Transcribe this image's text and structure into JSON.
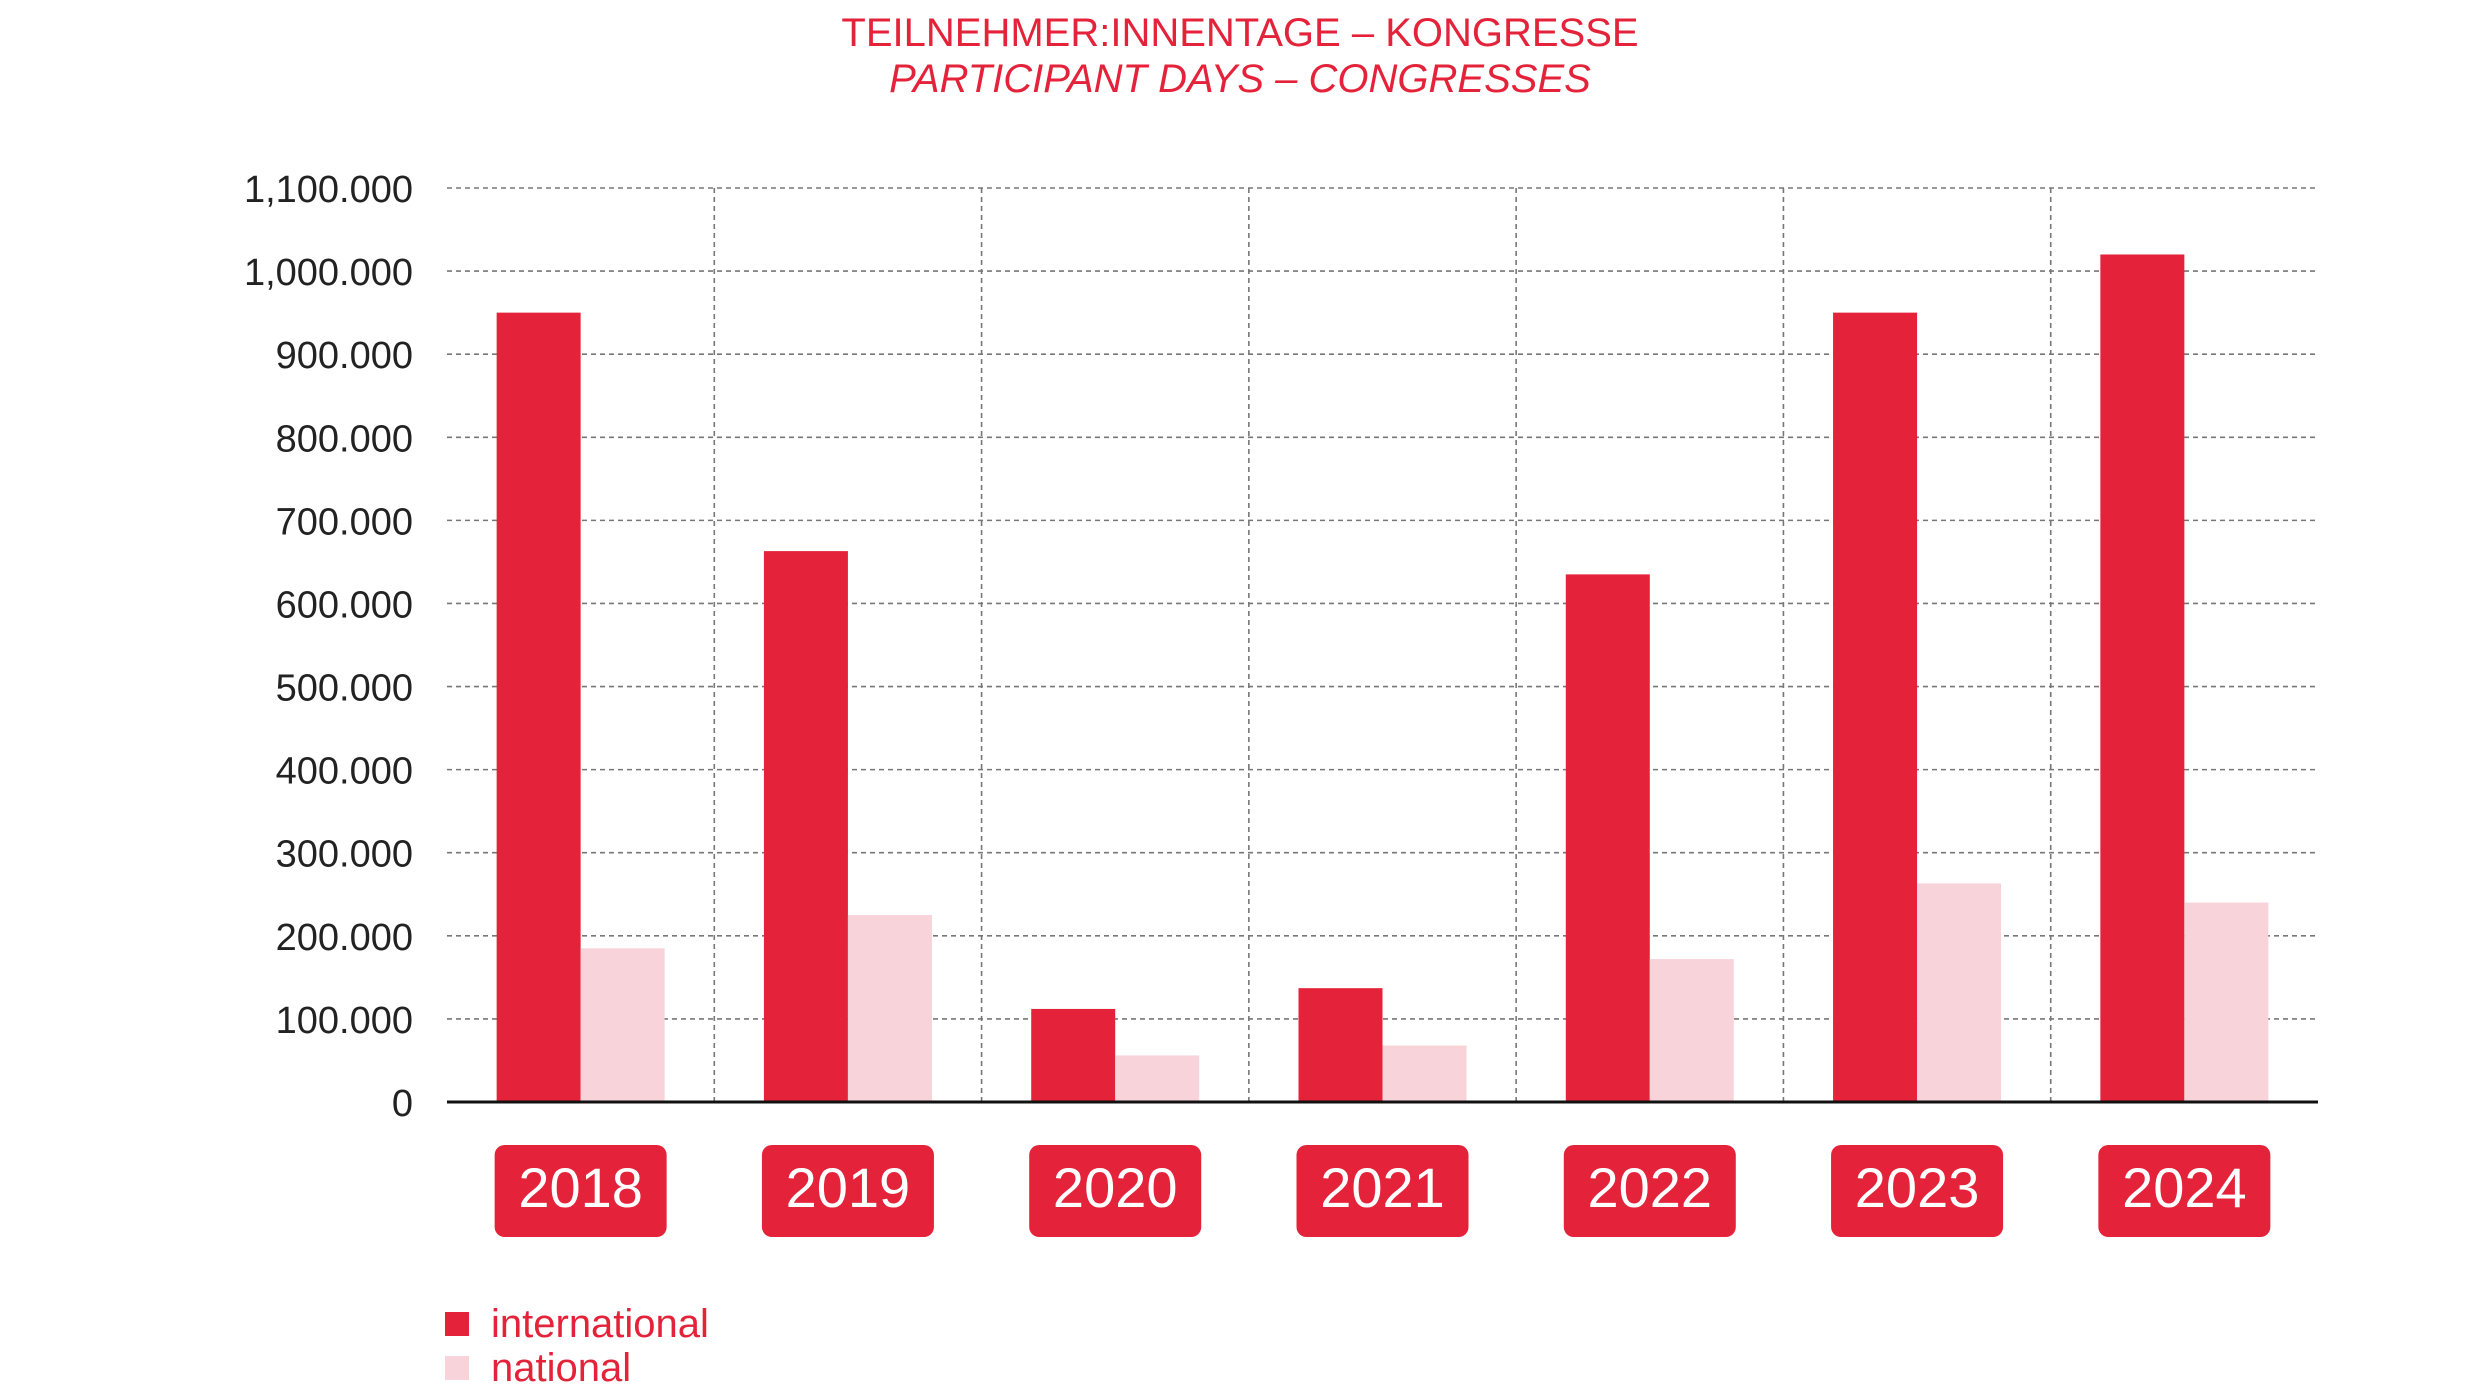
{
  "chart_data": {
    "type": "bar",
    "title": "TEILNEHMER:INNENTAGE – KONGRESSE",
    "subtitle": "PARTICIPANT DAYS – CONGRESSES",
    "xlabel": "",
    "ylabel": "",
    "categories": [
      "2018",
      "2019",
      "2020",
      "2021",
      "2022",
      "2023",
      "2024"
    ],
    "series": [
      {
        "name": "international",
        "color": "#e4233a",
        "values": [
          950000,
          663000,
          112000,
          137000,
          635000,
          950000,
          1020000
        ]
      },
      {
        "name": "national",
        "color": "#f9d3da",
        "values": [
          185000,
          225000,
          56000,
          68000,
          172000,
          263000,
          240000
        ]
      }
    ],
    "ylim": [
      0,
      1100000
    ],
    "yticks": [
      0,
      100000,
      200000,
      300000,
      400000,
      500000,
      600000,
      700000,
      800000,
      900000,
      1000000,
      1100000
    ],
    "ytick_labels": [
      "0",
      "100.000",
      "200.000",
      "300.000",
      "400.000",
      "500.000",
      "600.000",
      "700.000",
      "800.000",
      "900.000",
      "1,000.000",
      "1,100.000"
    ],
    "grid": true,
    "legend_position": "bottom-left"
  }
}
